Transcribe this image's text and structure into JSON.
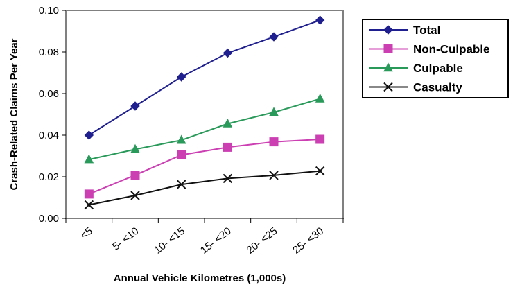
{
  "chart_data": {
    "type": "line",
    "categories": [
      "<5",
      "5- <10",
      "10- <15",
      "15- <20",
      "20- <25",
      "25- <30"
    ],
    "xlabel": "Annual Vehicle Kilometres (1,000s)",
    "ylabel": "Crash-Related Claims Per Year",
    "ylim": [
      0,
      0.1
    ],
    "yticks": [
      "0.00",
      "0.02",
      "0.04",
      "0.06",
      "0.08",
      "0.10"
    ],
    "grid": false,
    "legend_position": "right",
    "series": [
      {
        "name": "Total",
        "color": "#1f1f8f",
        "marker": "diamond",
        "values": [
          0.04,
          0.054,
          0.068,
          0.0795,
          0.0873,
          0.0953
        ]
      },
      {
        "name": "Non-Culpable",
        "color": "#cc3fb3",
        "marker": "square",
        "values": [
          0.0117,
          0.0208,
          0.0305,
          0.0342,
          0.0368,
          0.038
        ]
      },
      {
        "name": "Culpable",
        "color": "#2a9a5a",
        "marker": "triangle",
        "values": [
          0.0283,
          0.0332,
          0.0376,
          0.0455,
          0.051,
          0.0575
        ]
      },
      {
        "name": "Casualty",
        "color": "#111111",
        "marker": "x",
        "values": [
          0.0065,
          0.011,
          0.0163,
          0.0192,
          0.0207,
          0.0228
        ]
      }
    ]
  }
}
